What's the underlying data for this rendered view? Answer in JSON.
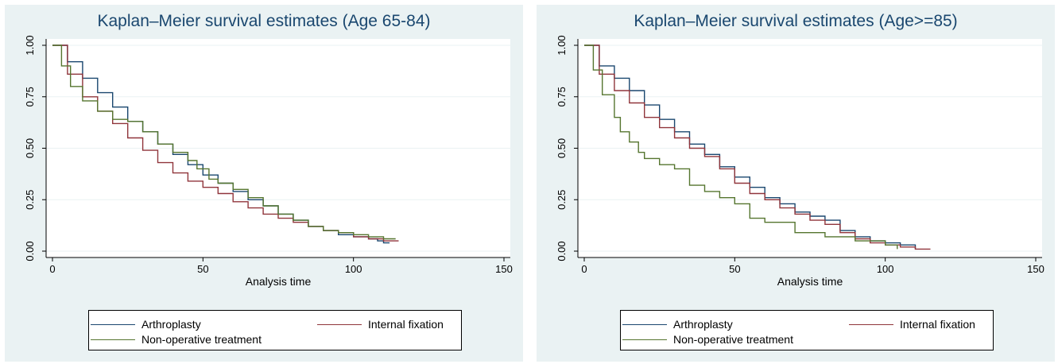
{
  "colors": {
    "arthroplasty": "#1a476f",
    "internal_fixation": "#90353b",
    "non_operative": "#55752f"
  },
  "chart_data": [
    {
      "type": "line",
      "step": true,
      "title": "Kaplan–Meier survival estimates (Age 65-84)",
      "xlabel": "Analysis time",
      "ylabel": "",
      "xlim": [
        0,
        150
      ],
      "ylim": [
        0,
        1
      ],
      "xticks": [
        "0",
        "50",
        "100",
        "150"
      ],
      "yticks": [
        "0.00",
        "0.25",
        "0.50",
        "0.75",
        "1.00"
      ],
      "grid": "horizontal",
      "legend": "bottom",
      "series": [
        {
          "name": "Arthroplasty",
          "x": [
            0,
            5,
            10,
            15,
            20,
            25,
            30,
            35,
            40,
            45,
            50,
            55,
            60,
            65,
            70,
            75,
            80,
            85,
            90,
            95,
            100,
            105,
            108,
            110,
            112
          ],
          "y": [
            1.0,
            0.92,
            0.84,
            0.77,
            0.7,
            0.63,
            0.58,
            0.52,
            0.47,
            0.42,
            0.37,
            0.33,
            0.29,
            0.25,
            0.22,
            0.18,
            0.15,
            0.12,
            0.1,
            0.08,
            0.07,
            0.06,
            0.05,
            0.04,
            0.04
          ]
        },
        {
          "name": "Internal fixation",
          "x": [
            0,
            5,
            10,
            15,
            20,
            25,
            30,
            35,
            40,
            45,
            50,
            55,
            60,
            65,
            70,
            75,
            80,
            85,
            90,
            95,
            100,
            105,
            110,
            115
          ],
          "y": [
            1.0,
            0.86,
            0.75,
            0.68,
            0.62,
            0.55,
            0.49,
            0.43,
            0.38,
            0.34,
            0.31,
            0.28,
            0.24,
            0.21,
            0.18,
            0.16,
            0.14,
            0.12,
            0.1,
            0.09,
            0.07,
            0.06,
            0.05,
            0.05
          ]
        },
        {
          "name": "Non-operative treatment",
          "x": [
            0,
            3,
            6,
            10,
            15,
            20,
            25,
            30,
            35,
            40,
            45,
            48,
            52,
            55,
            60,
            65,
            70,
            75,
            80,
            85,
            90,
            95,
            100,
            105,
            110,
            114
          ],
          "y": [
            1.0,
            0.9,
            0.8,
            0.73,
            0.68,
            0.64,
            0.63,
            0.58,
            0.52,
            0.48,
            0.44,
            0.4,
            0.35,
            0.33,
            0.3,
            0.26,
            0.22,
            0.18,
            0.15,
            0.12,
            0.1,
            0.09,
            0.08,
            0.07,
            0.06,
            0.06
          ]
        }
      ]
    },
    {
      "type": "line",
      "step": true,
      "title": "Kaplan–Meier survival estimates (Age>=85)",
      "xlabel": "Analysis time",
      "ylabel": "",
      "xlim": [
        0,
        150
      ],
      "ylim": [
        0,
        1
      ],
      "xticks": [
        "0",
        "50",
        "100",
        "150"
      ],
      "yticks": [
        "0.00",
        "0.25",
        "0.50",
        "0.75",
        "1.00"
      ],
      "grid": "horizontal",
      "legend": "bottom",
      "series": [
        {
          "name": "Arthroplasty",
          "x": [
            0,
            5,
            10,
            15,
            20,
            25,
            30,
            35,
            40,
            45,
            50,
            55,
            60,
            65,
            70,
            75,
            80,
            85,
            90,
            95,
            100,
            105,
            110
          ],
          "y": [
            1.0,
            0.9,
            0.84,
            0.78,
            0.71,
            0.64,
            0.58,
            0.52,
            0.47,
            0.41,
            0.36,
            0.31,
            0.26,
            0.23,
            0.19,
            0.17,
            0.15,
            0.1,
            0.07,
            0.05,
            0.04,
            0.03,
            0.01
          ]
        },
        {
          "name": "Internal fixation",
          "x": [
            0,
            5,
            10,
            15,
            20,
            25,
            30,
            35,
            40,
            45,
            50,
            55,
            60,
            65,
            70,
            75,
            80,
            85,
            90,
            95,
            100,
            105,
            110,
            115
          ],
          "y": [
            1.0,
            0.86,
            0.78,
            0.72,
            0.65,
            0.6,
            0.55,
            0.5,
            0.46,
            0.4,
            0.33,
            0.28,
            0.25,
            0.21,
            0.18,
            0.15,
            0.13,
            0.09,
            0.06,
            0.04,
            0.03,
            0.02,
            0.01,
            0.01
          ]
        },
        {
          "name": "Non-operative treatment",
          "x": [
            0,
            3,
            6,
            10,
            12,
            15,
            18,
            20,
            25,
            30,
            35,
            40,
            45,
            50,
            55,
            60,
            70,
            80,
            90,
            100,
            104
          ],
          "y": [
            1.0,
            0.88,
            0.76,
            0.65,
            0.58,
            0.53,
            0.48,
            0.45,
            0.42,
            0.4,
            0.32,
            0.29,
            0.26,
            0.23,
            0.16,
            0.14,
            0.09,
            0.07,
            0.05,
            0.03,
            0.01
          ]
        }
      ]
    }
  ]
}
